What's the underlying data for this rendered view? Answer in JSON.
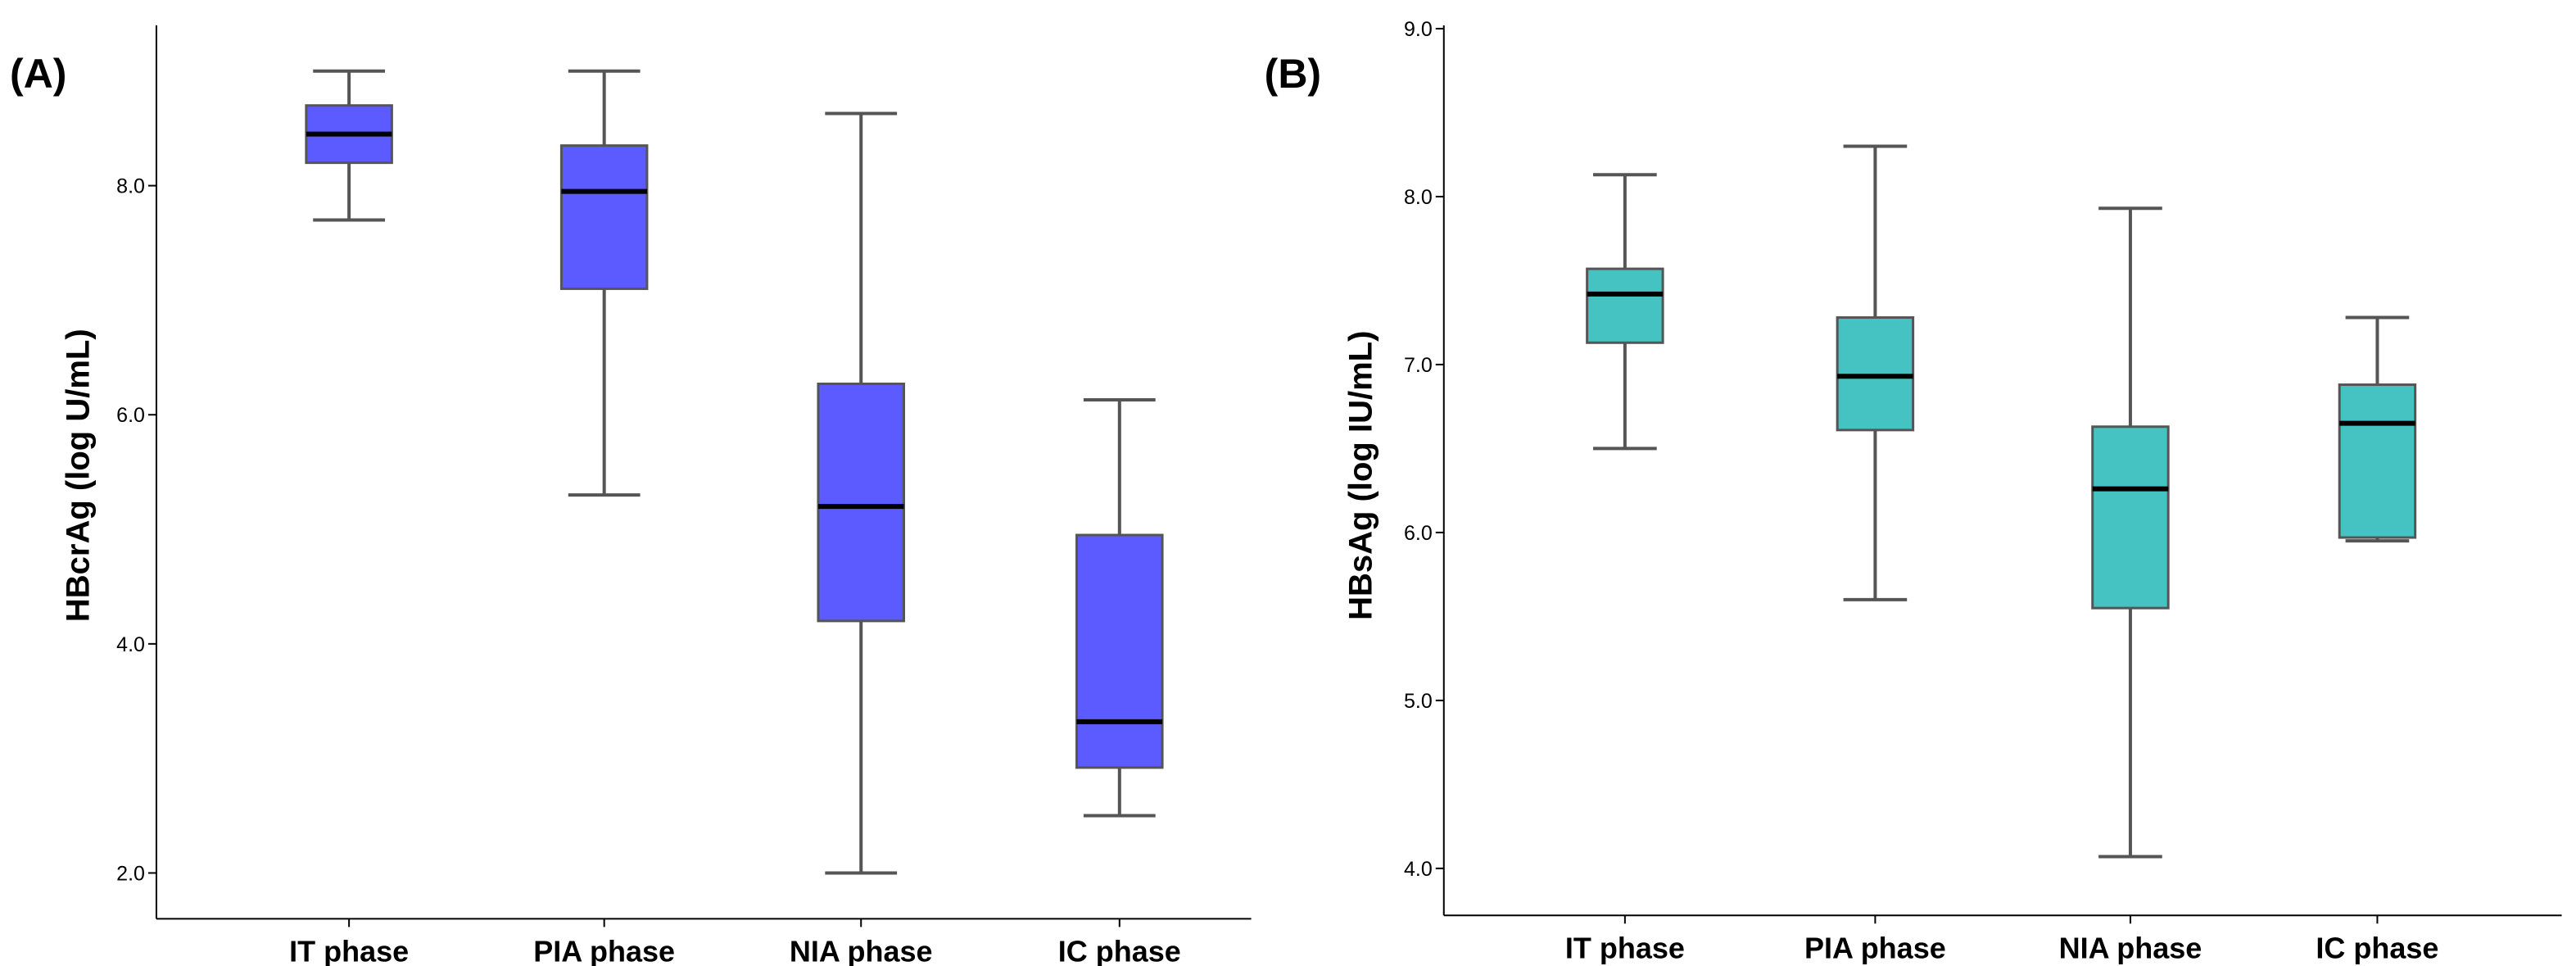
{
  "chart_data": [
    {
      "type": "boxplot",
      "panel_label": "(A)",
      "title": "",
      "xlabel": "",
      "ylabel": "HBcrAg (log U/mL)",
      "ylim": [
        1.6,
        9.4
      ],
      "yticks": [
        2.0,
        4.0,
        6.0,
        8.0
      ],
      "ytick_labels": [
        "2.0",
        "4.0",
        "6.0",
        "8.0"
      ],
      "grid": false,
      "box_color": "#5b5bff",
      "categories": [
        "IT phase",
        "PIA phase",
        "NIA phase",
        "IC phase"
      ],
      "boxes": [
        {
          "category": "IT phase",
          "whisker_low": 7.7,
          "q1": 8.2,
          "median": 8.45,
          "q3": 8.7,
          "whisker_high": 9.0
        },
        {
          "category": "PIA phase",
          "whisker_low": 5.3,
          "q1": 7.1,
          "median": 7.95,
          "q3": 8.35,
          "whisker_high": 9.0
        },
        {
          "category": "NIA phase",
          "whisker_low": 2.0,
          "q1": 4.2,
          "median": 5.2,
          "q3": 6.27,
          "whisker_high": 8.63
        },
        {
          "category": "IC phase",
          "whisker_low": 2.5,
          "q1": 2.92,
          "median": 3.32,
          "q3": 4.95,
          "whisker_high": 6.13
        }
      ]
    },
    {
      "type": "boxplot",
      "panel_label": "(B)",
      "title": "",
      "xlabel": "",
      "ylabel": "HBsAg (log IU/mL)",
      "ylim": [
        3.72,
        9.02
      ],
      "yticks": [
        4.0,
        5.0,
        6.0,
        7.0,
        8.0,
        9.0
      ],
      "ytick_labels": [
        "4.0",
        "5.0",
        "6.0",
        "7.0",
        "8.0",
        "9.0"
      ],
      "grid": false,
      "box_color": "#45c2c2",
      "categories": [
        "IT phase",
        "PIA phase",
        "NIA phase",
        "IC phase"
      ],
      "boxes": [
        {
          "category": "IT phase",
          "whisker_low": 6.5,
          "q1": 7.13,
          "median": 7.42,
          "q3": 7.57,
          "whisker_high": 8.13
        },
        {
          "category": "PIA phase",
          "whisker_low": 5.6,
          "q1": 6.61,
          "median": 6.93,
          "q3": 7.28,
          "whisker_high": 8.3
        },
        {
          "category": "NIA phase",
          "whisker_low": 4.07,
          "q1": 5.55,
          "median": 6.26,
          "q3": 6.63,
          "whisker_high": 7.93
        },
        {
          "category": "IC phase",
          "whisker_low": 5.95,
          "q1": 5.97,
          "median": 6.65,
          "q3": 6.88,
          "whisker_high": 7.28
        }
      ]
    }
  ]
}
